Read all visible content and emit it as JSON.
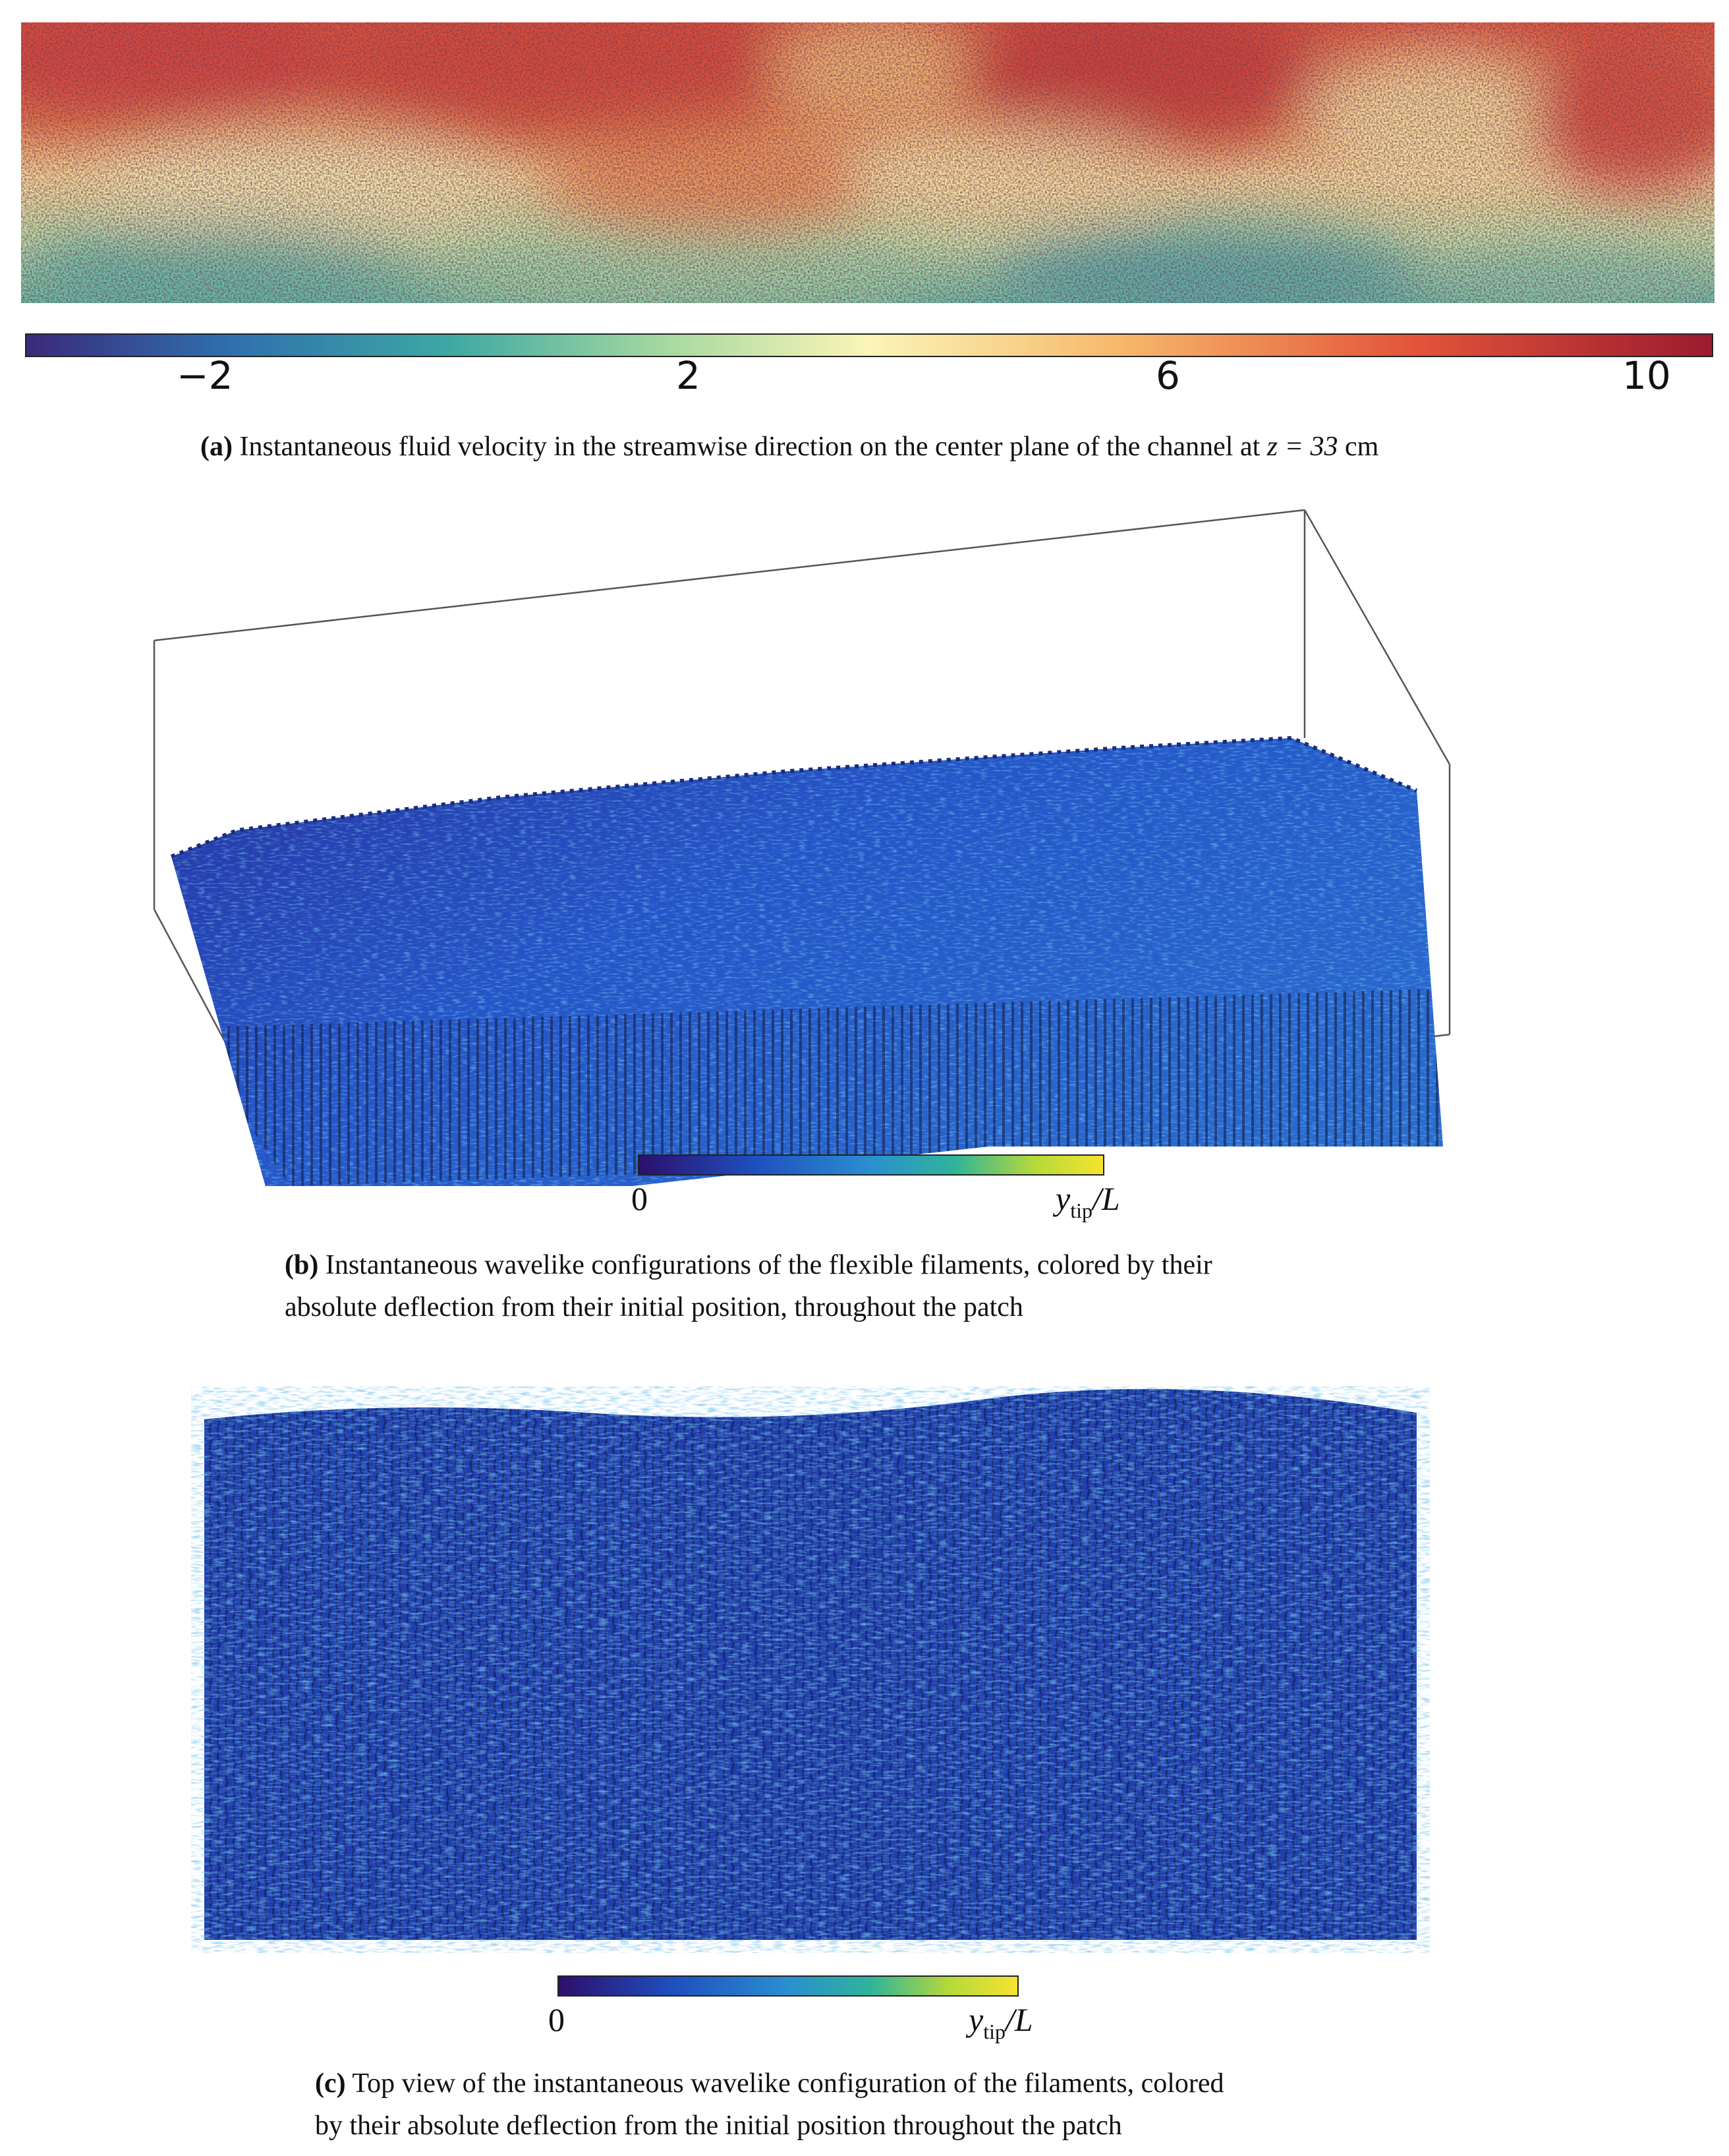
{
  "panel_a": {
    "colorbar_ticks": [
      "−2",
      "2",
      "6",
      "10"
    ],
    "caption_label": "(a)",
    "caption_text": "Instantaneous fluid velocity in the streamwise direction on the center plane of the channel at",
    "caption_math": "z = 33",
    "caption_unit": "cm",
    "colormap": [
      "#3b2a7a",
      "#2f6fae",
      "#3da8a3",
      "#a7d9a0",
      "#fbf5b8",
      "#f6b86a",
      "#e4553a",
      "#9b1b2f"
    ]
  },
  "panel_b": {
    "cbar_min": "0",
    "cbar_label_var": "y",
    "cbar_label_sub": "tip",
    "cbar_label_den": "/L",
    "caption_label": "(b)",
    "caption_line1": "Instantaneous wavelike configurations of the flexible filaments, colored by their",
    "caption_line2": "absolute deflection from their initial position, throughout the patch",
    "colormap": [
      "#2c0f6b",
      "#1f4fbf",
      "#2a8fd0",
      "#2fb49a",
      "#b6d93a",
      "#f6e330"
    ]
  },
  "panel_c": {
    "cbar_min": "0",
    "cbar_label_var": "y",
    "cbar_label_sub": "tip",
    "cbar_label_den": "/L",
    "caption_label": "(c)",
    "caption_line1": "Top view of the instantaneous wavelike configuration of the filaments, colored",
    "caption_line2": "by their absolute deflection from the initial position throughout the patch",
    "colormap": [
      "#2c0f6b",
      "#1f4fbf",
      "#2a8fd0",
      "#2fb49a",
      "#b6d93a",
      "#f6e330"
    ]
  }
}
